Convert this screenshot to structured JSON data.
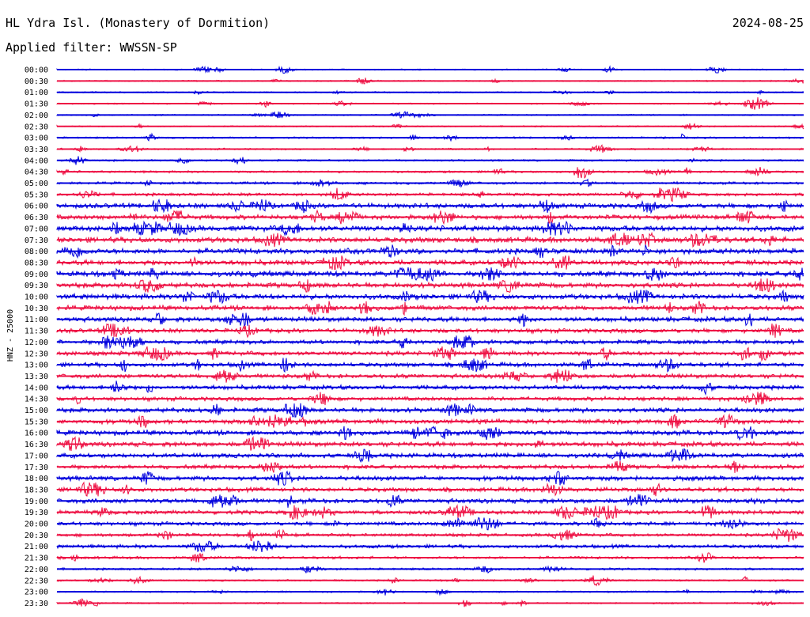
{
  "header": {
    "station_title": "HL Ydra Isl. (Monastery of Dormition)",
    "date": "2024-08-25",
    "filter_label": "Applied filter: WWSSN-SP"
  },
  "colors": {
    "trace_even": "#0000dd",
    "trace_odd": "#ee1144",
    "background": "#ffffff",
    "text": "#000000"
  },
  "chart_data": {
    "type": "line",
    "title": "HL Ydra Isl. (Monastery of Dormition)",
    "ylabel": "HNZ - 25000",
    "xlabel": "",
    "row_interval_minutes": 30,
    "tick_labels": [
      "00:00",
      "00:30",
      "01:00",
      "01:30",
      "02:00",
      "02:30",
      "03:00",
      "03:30",
      "04:00",
      "04:30",
      "05:00",
      "05:30",
      "06:00",
      "06:30",
      "07:00",
      "07:30",
      "08:00",
      "08:30",
      "09:00",
      "09:30",
      "10:00",
      "10:30",
      "11:00",
      "11:30",
      "12:00",
      "12:30",
      "13:00",
      "13:30",
      "14:00",
      "14:30",
      "15:00",
      "15:30",
      "16:00",
      "16:30",
      "17:00",
      "17:30",
      "18:00",
      "18:30",
      "19:00",
      "19:30",
      "20:00",
      "20:30",
      "21:00",
      "21:30",
      "22:00",
      "22:30",
      "23:00",
      "23:30"
    ],
    "relative_noise_amplitude": [
      1,
      1,
      1.1,
      1,
      1,
      1,
      1.3,
      1.3,
      1.4,
      1.6,
      1.9,
      2.2,
      3.6,
      3.4,
      4.2,
      4.2,
      4.0,
      3.8,
      4.0,
      3.8,
      4.0,
      3.6,
      3.6,
      3.2,
      3.2,
      3.2,
      3.2,
      3.2,
      3.2,
      3.0,
      3.4,
      3.4,
      3.6,
      3.6,
      3.4,
      3.2,
      3.4,
      3.2,
      3.4,
      3.0,
      2.8,
      2.4,
      2.6,
      2.0,
      1.6,
      1.3,
      1.2,
      1.2
    ],
    "grid": false,
    "legend": "none"
  }
}
